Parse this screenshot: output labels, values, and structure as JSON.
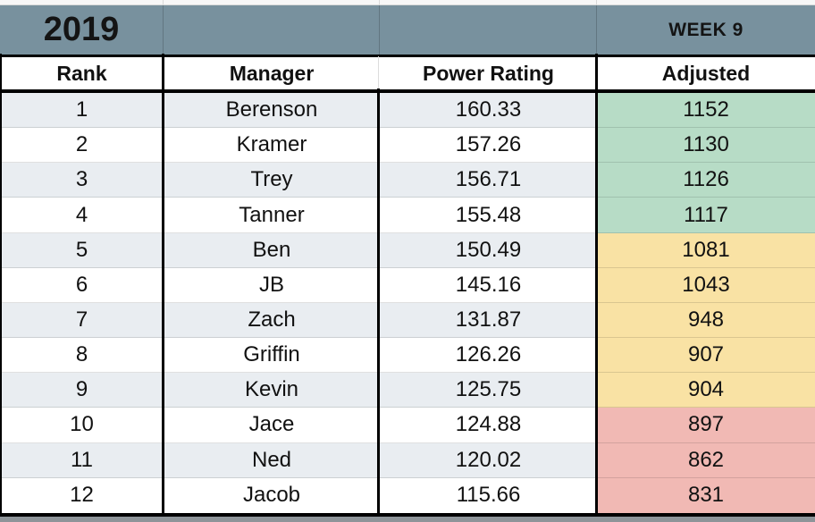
{
  "banner": {
    "year": "2019",
    "week": "WEEK 9"
  },
  "columns": [
    "Rank",
    "Manager",
    "Power Rating",
    "Adjusted"
  ],
  "rows": [
    {
      "rank": "1",
      "manager": "Berenson",
      "power_rating": "160.33",
      "adjusted": "1152",
      "tier": "green"
    },
    {
      "rank": "2",
      "manager": "Kramer",
      "power_rating": "157.26",
      "adjusted": "1130",
      "tier": "green"
    },
    {
      "rank": "3",
      "manager": "Trey",
      "power_rating": "156.71",
      "adjusted": "1126",
      "tier": "green"
    },
    {
      "rank": "4",
      "manager": "Tanner",
      "power_rating": "155.48",
      "adjusted": "1117",
      "tier": "green"
    },
    {
      "rank": "5",
      "manager": "Ben",
      "power_rating": "150.49",
      "adjusted": "1081",
      "tier": "yellow"
    },
    {
      "rank": "6",
      "manager": "JB",
      "power_rating": "145.16",
      "adjusted": "1043",
      "tier": "yellow"
    },
    {
      "rank": "7",
      "manager": "Zach",
      "power_rating": "131.87",
      "adjusted": "948",
      "tier": "yellow"
    },
    {
      "rank": "8",
      "manager": "Griffin",
      "power_rating": "126.26",
      "adjusted": "907",
      "tier": "yellow"
    },
    {
      "rank": "9",
      "manager": "Kevin",
      "power_rating": "125.75",
      "adjusted": "904",
      "tier": "yellow"
    },
    {
      "rank": "10",
      "manager": "Jace",
      "power_rating": "124.88",
      "adjusted": "897",
      "tier": "red"
    },
    {
      "rank": "11",
      "manager": "Ned",
      "power_rating": "120.02",
      "adjusted": "862",
      "tier": "red"
    },
    {
      "rank": "12",
      "manager": "Jacob",
      "power_rating": "115.66",
      "adjusted": "831",
      "tier": "red"
    }
  ],
  "colors": {
    "green": "#b7dcc6",
    "yellow": "#f9e2a4",
    "red": "#f1b9b4",
    "banner": "#78919e",
    "row_alt": "#e9edf1"
  }
}
